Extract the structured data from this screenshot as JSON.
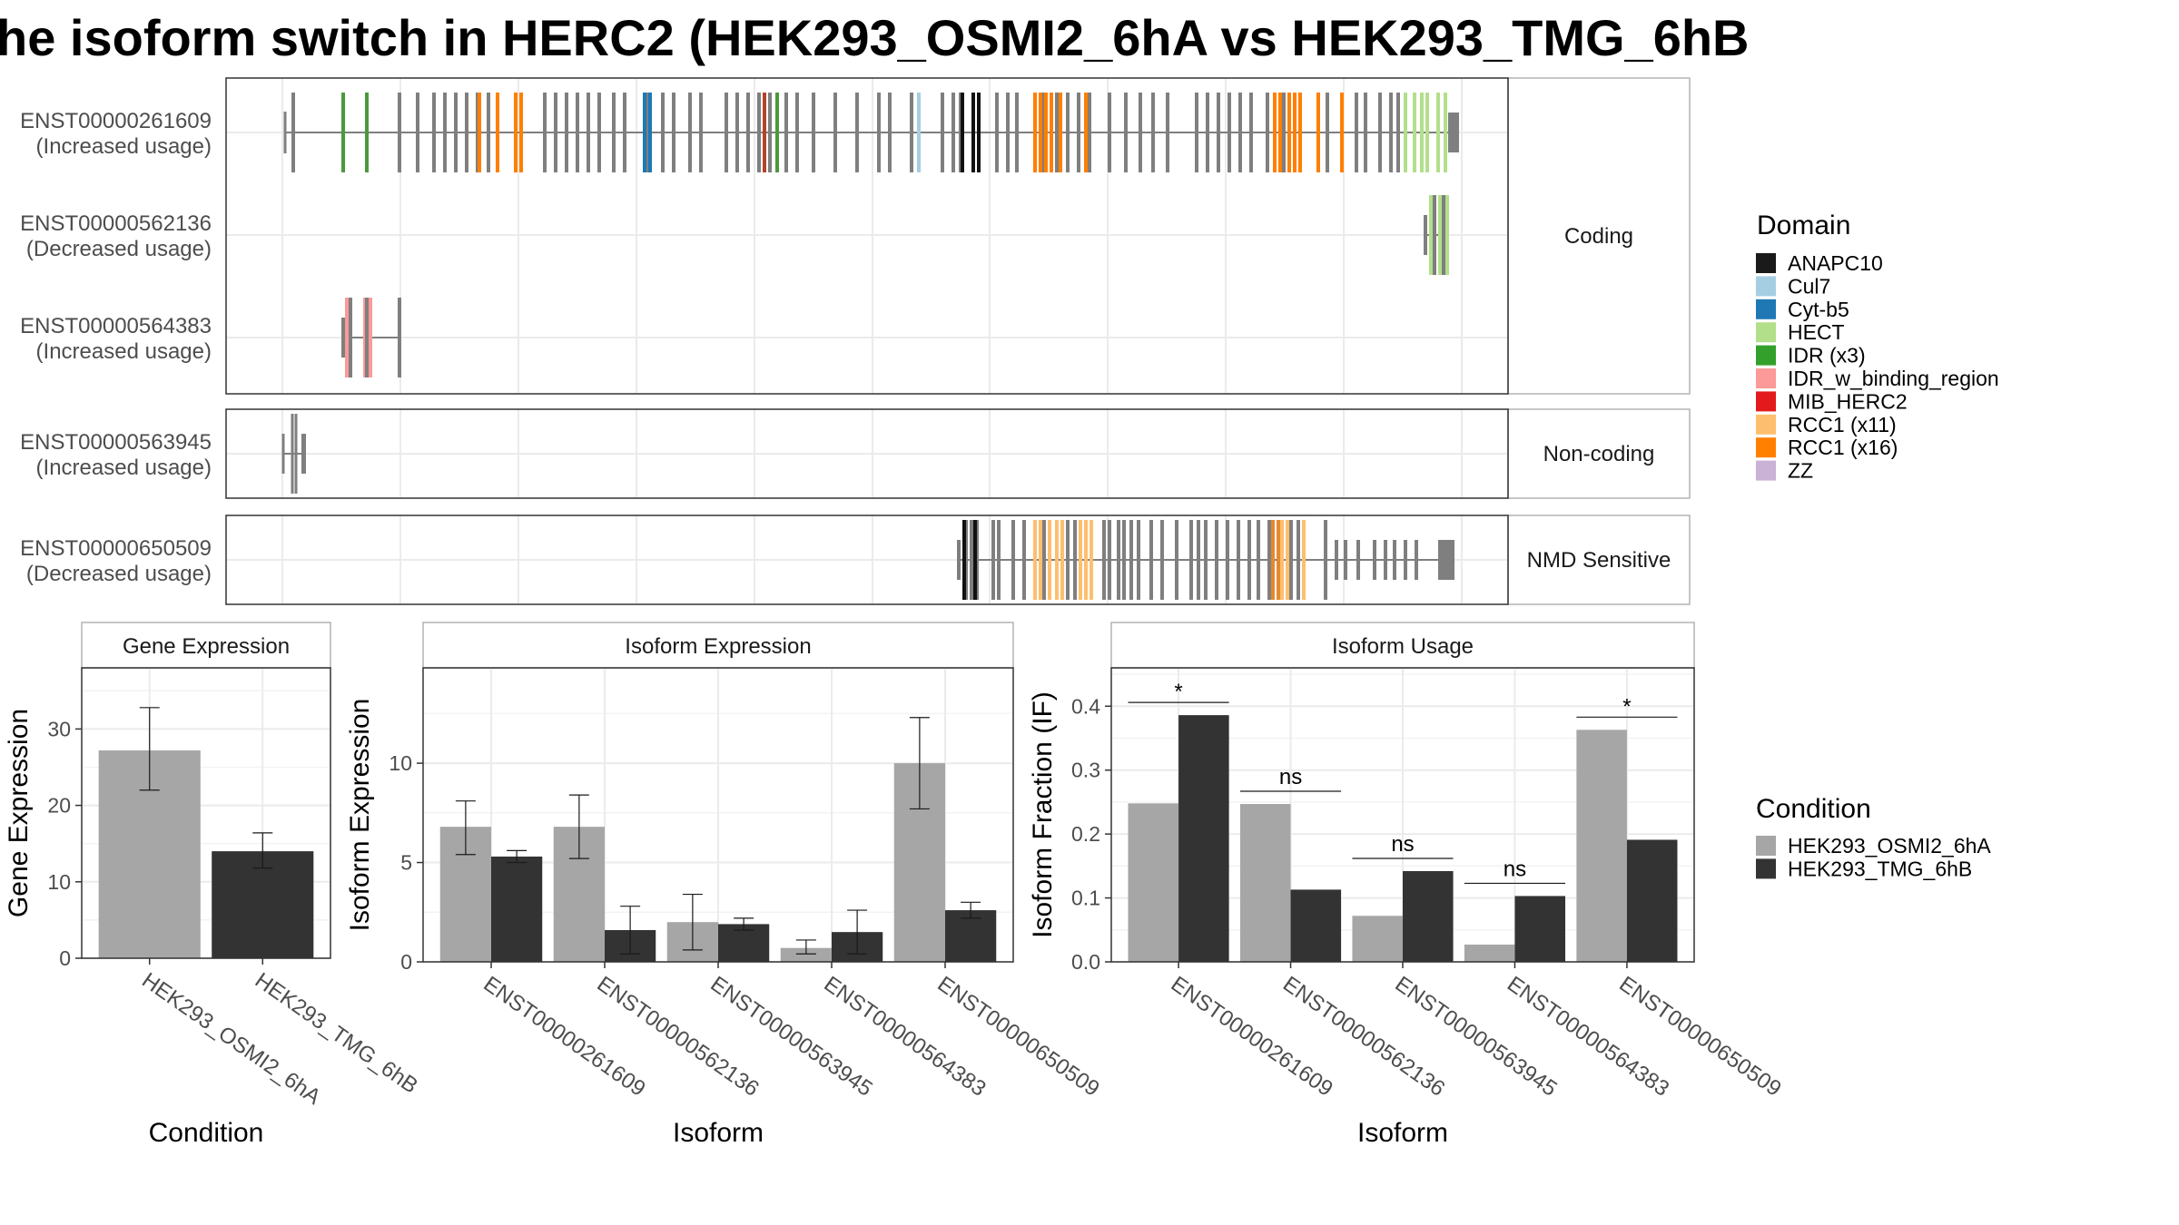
{
  "title": "he isoform switch in HERC2 (HEK293_OSMI2_6hA vs HEK293_TMG_6hB",
  "colors": {
    "ANAPC10": "#1a1a1a",
    "Cul7": "#a6cee3",
    "Cyt-b5": "#1f78b4",
    "HECT": "#b2df8a",
    "IDR (x3)": "#33a02c",
    "IDR_w_binding_region": "#fb9a99",
    "MIB_HERC2": "#e31a1c",
    "RCC1 (x11)": "#fdbf6f",
    "RCC1 (x16)": "#ff7f00",
    "ZZ": "#cab2d6",
    "exon": "#7f7f7f",
    "cond_a": "#a6a6a6",
    "cond_b": "#333333"
  },
  "chart_data": [
    {
      "type": "other",
      "name": "transcript-structure",
      "rows": [
        {
          "id": "ENST00000261609",
          "usage": "(Increased usage)",
          "panel": 0
        },
        {
          "id": "ENST00000562136",
          "usage": "(Decreased usage)",
          "panel": 0
        },
        {
          "id": "ENST00000564383",
          "usage": "(Increased usage)",
          "panel": 0
        },
        {
          "id": "ENST00000563945",
          "usage": "(Increased usage)",
          "panel": 1
        },
        {
          "id": "ENST00000650509",
          "usage": "(Decreased usage)",
          "panel": 2
        }
      ],
      "panels": [
        "Coding",
        "Non-coding",
        "NMD Sensitive"
      ],
      "legend_title": "Domain",
      "legend": [
        "ANAPC10",
        "Cul7",
        "Cyt-b5",
        "HECT",
        "IDR (x3)",
        "IDR_w_binding_region",
        "MIB_HERC2",
        "RCC1 (x11)",
        "RCC1 (x16)",
        "ZZ"
      ]
    },
    {
      "type": "bar",
      "name": "gene-expression",
      "facet": "Gene Expression",
      "xlabel": "Condition",
      "ylabel": "Gene Expression",
      "ylim": [
        0,
        38
      ],
      "yticks": [
        0,
        10,
        20,
        30
      ],
      "categories": [
        "HEK293_OSMI2_6hA",
        "HEK293_TMG_6hB"
      ],
      "values": [
        27.2,
        14.0
      ],
      "errors": [
        [
          22.0,
          32.8
        ],
        [
          11.8,
          16.4
        ]
      ]
    },
    {
      "type": "bar",
      "name": "isoform-expression",
      "facet": "Isoform Expression",
      "xlabel": "Isoform",
      "ylabel": "Isoform Expression",
      "ylim": [
        0,
        14.8
      ],
      "yticks": [
        0,
        5,
        10
      ],
      "categories": [
        "ENST00000261609",
        "ENST00000562136",
        "ENST00000563945",
        "ENST00000564383",
        "ENST00000650509"
      ],
      "series": [
        {
          "name": "HEK293_OSMI2_6hA",
          "values": [
            6.8,
            6.8,
            2.0,
            0.7,
            10.0
          ],
          "errors": [
            [
              5.4,
              8.1
            ],
            [
              5.2,
              8.4
            ],
            [
              0.6,
              3.4
            ],
            [
              0.4,
              1.1
            ],
            [
              7.7,
              12.3
            ]
          ]
        },
        {
          "name": "HEK293_TMG_6hB",
          "values": [
            5.3,
            1.6,
            1.9,
            1.5,
            2.6
          ],
          "errors": [
            [
              5.0,
              5.6
            ],
            [
              0.4,
              2.8
            ],
            [
              1.6,
              2.2
            ],
            [
              0.4,
              2.6
            ],
            [
              2.2,
              3.0
            ]
          ]
        }
      ]
    },
    {
      "type": "bar",
      "name": "isoform-usage",
      "facet": "Isoform Usage",
      "xlabel": "Isoform",
      "ylabel": "Isoform Fraction (IF)",
      "ylim": [
        0,
        0.46
      ],
      "yticks": [
        "0.0",
        "0.1",
        "0.2",
        "0.3",
        "0.4"
      ],
      "categories": [
        "ENST00000261609",
        "ENST00000562136",
        "ENST00000563945",
        "ENST00000564383",
        "ENST00000650509"
      ],
      "series": [
        {
          "name": "HEK293_OSMI2_6hA",
          "values": [
            0.248,
            0.247,
            0.072,
            0.027,
            0.363
          ]
        },
        {
          "name": "HEK293_TMG_6hB",
          "values": [
            0.386,
            0.113,
            0.142,
            0.103,
            0.191
          ]
        }
      ],
      "significance": [
        "*",
        "ns",
        "ns",
        "ns",
        "*"
      ]
    }
  ],
  "condition_legend": {
    "title": "Condition",
    "items": [
      "HEK293_OSMI2_6hA",
      "HEK293_TMG_6hB"
    ]
  }
}
